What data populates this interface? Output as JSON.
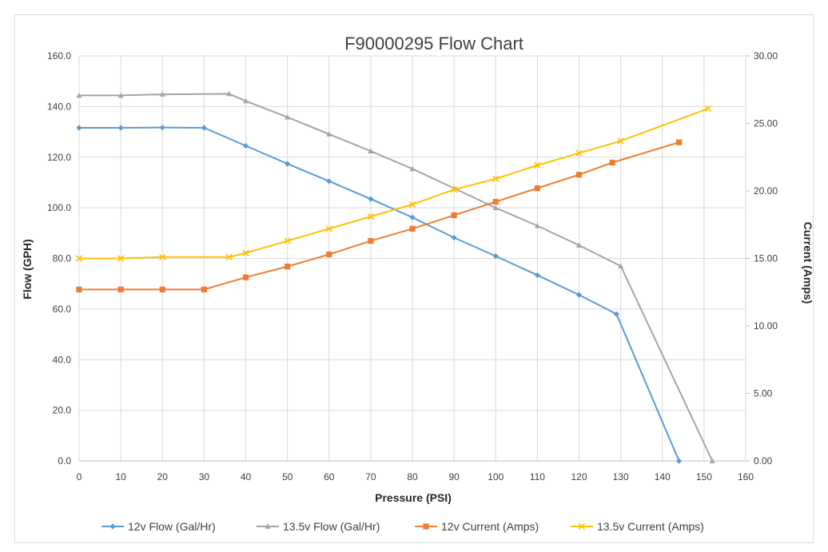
{
  "chart_data": {
    "type": "line",
    "title": "F90000295  Flow Chart",
    "xlabel": "Pressure (PSI)",
    "ylabel": "Flow (GPH)",
    "y2label": "Current (Amps)",
    "xlim": [
      0,
      160
    ],
    "ylim": [
      0,
      160
    ],
    "y2lim": [
      0,
      30
    ],
    "x_ticks": [
      "0",
      "10",
      "20",
      "30",
      "40",
      "50",
      "60",
      "70",
      "80",
      "90",
      "100",
      "110",
      "120",
      "130",
      "140",
      "150",
      "160"
    ],
    "y_ticks": [
      "0.0",
      "20.0",
      "40.0",
      "60.0",
      "80.0",
      "100.0",
      "120.0",
      "140.0",
      "160.0"
    ],
    "y2_ticks": [
      "0.00",
      "5.00",
      "10.00",
      "15.00",
      "20.00",
      "25.00",
      "30.00"
    ],
    "grid": true,
    "legend_position": "bottom",
    "series": [
      {
        "name": "12v Flow (Gal/Hr)",
        "axis": "left",
        "marker": "diamond",
        "color": "#5b9bd5",
        "x": [
          0,
          10,
          20,
          30,
          40,
          50,
          60,
          70,
          80,
          90,
          100,
          110,
          120,
          129,
          144
        ],
        "y": [
          131.6,
          131.6,
          131.7,
          131.6,
          124.5,
          117.4,
          110.5,
          103.5,
          96.2,
          88.2,
          80.9,
          73.4,
          65.6,
          58.0,
          0.0
        ]
      },
      {
        "name": "13.5v Flow (Gal/Hr)",
        "axis": "left",
        "marker": "triangle",
        "color": "#a5a5a5",
        "x": [
          0,
          10,
          20,
          36,
          40,
          50,
          60,
          70,
          80,
          90,
          100,
          110,
          120,
          130,
          152
        ],
        "y": [
          144.4,
          144.4,
          144.8,
          145.0,
          142.2,
          135.8,
          129.1,
          122.4,
          115.4,
          107.7,
          100.0,
          92.9,
          85.2,
          77.0,
          0.0
        ]
      },
      {
        "name": "12v Current (Amps)",
        "axis": "right",
        "marker": "square",
        "color": "#ed7d31",
        "x": [
          0,
          10,
          20,
          30,
          40,
          50,
          60,
          70,
          80,
          90,
          100,
          110,
          120,
          128,
          144
        ],
        "y": [
          12.7,
          12.7,
          12.7,
          12.7,
          13.6,
          14.4,
          15.3,
          16.3,
          17.2,
          18.2,
          19.2,
          20.2,
          21.2,
          22.1,
          23.6
        ]
      },
      {
        "name": "13.5v Current (Amps)",
        "axis": "right",
        "marker": "x",
        "color": "#ffc000",
        "x": [
          0,
          10,
          20,
          36,
          40,
          50,
          60,
          70,
          80,
          90,
          100,
          110,
          120,
          130,
          151
        ],
        "y": [
          15.0,
          15.0,
          15.1,
          15.1,
          15.4,
          16.3,
          17.2,
          18.1,
          19.0,
          20.1,
          20.9,
          21.9,
          22.8,
          23.7,
          26.1
        ]
      }
    ]
  }
}
